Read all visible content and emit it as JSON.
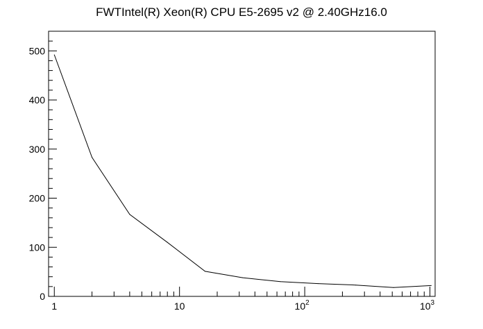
{
  "chart_data": {
    "type": "line",
    "title": "FWTIntel(R) Xeon(R) CPU E5-2695 v2 @ 2.40GHz16.0",
    "xlabel": "",
    "ylabel": "",
    "xscale": "log",
    "xlim": [
      0.9,
      1100
    ],
    "ylim": [
      0,
      540
    ],
    "grid": false,
    "legend": "none",
    "line_color": "#000000",
    "x_ticks": [
      {
        "value": 1,
        "base": "1",
        "exp": ""
      },
      {
        "value": 10,
        "base": "10",
        "exp": ""
      },
      {
        "value": 100,
        "base": "10",
        "exp": "2"
      },
      {
        "value": 1000,
        "base": "10",
        "exp": "3"
      }
    ],
    "y_ticks": [
      {
        "value": 0,
        "label": "0"
      },
      {
        "value": 100,
        "label": "100"
      },
      {
        "value": 200,
        "label": "200"
      },
      {
        "value": 300,
        "label": "300"
      },
      {
        "value": 400,
        "label": "400"
      },
      {
        "value": 500,
        "label": "500"
      }
    ],
    "series": [
      {
        "x": [
          1,
          2,
          4,
          8,
          16,
          32,
          64,
          128,
          256,
          512,
          1024
        ],
        "y": [
          492,
          283,
          167,
          110,
          51,
          38,
          30,
          26,
          23,
          18,
          22
        ]
      }
    ]
  }
}
